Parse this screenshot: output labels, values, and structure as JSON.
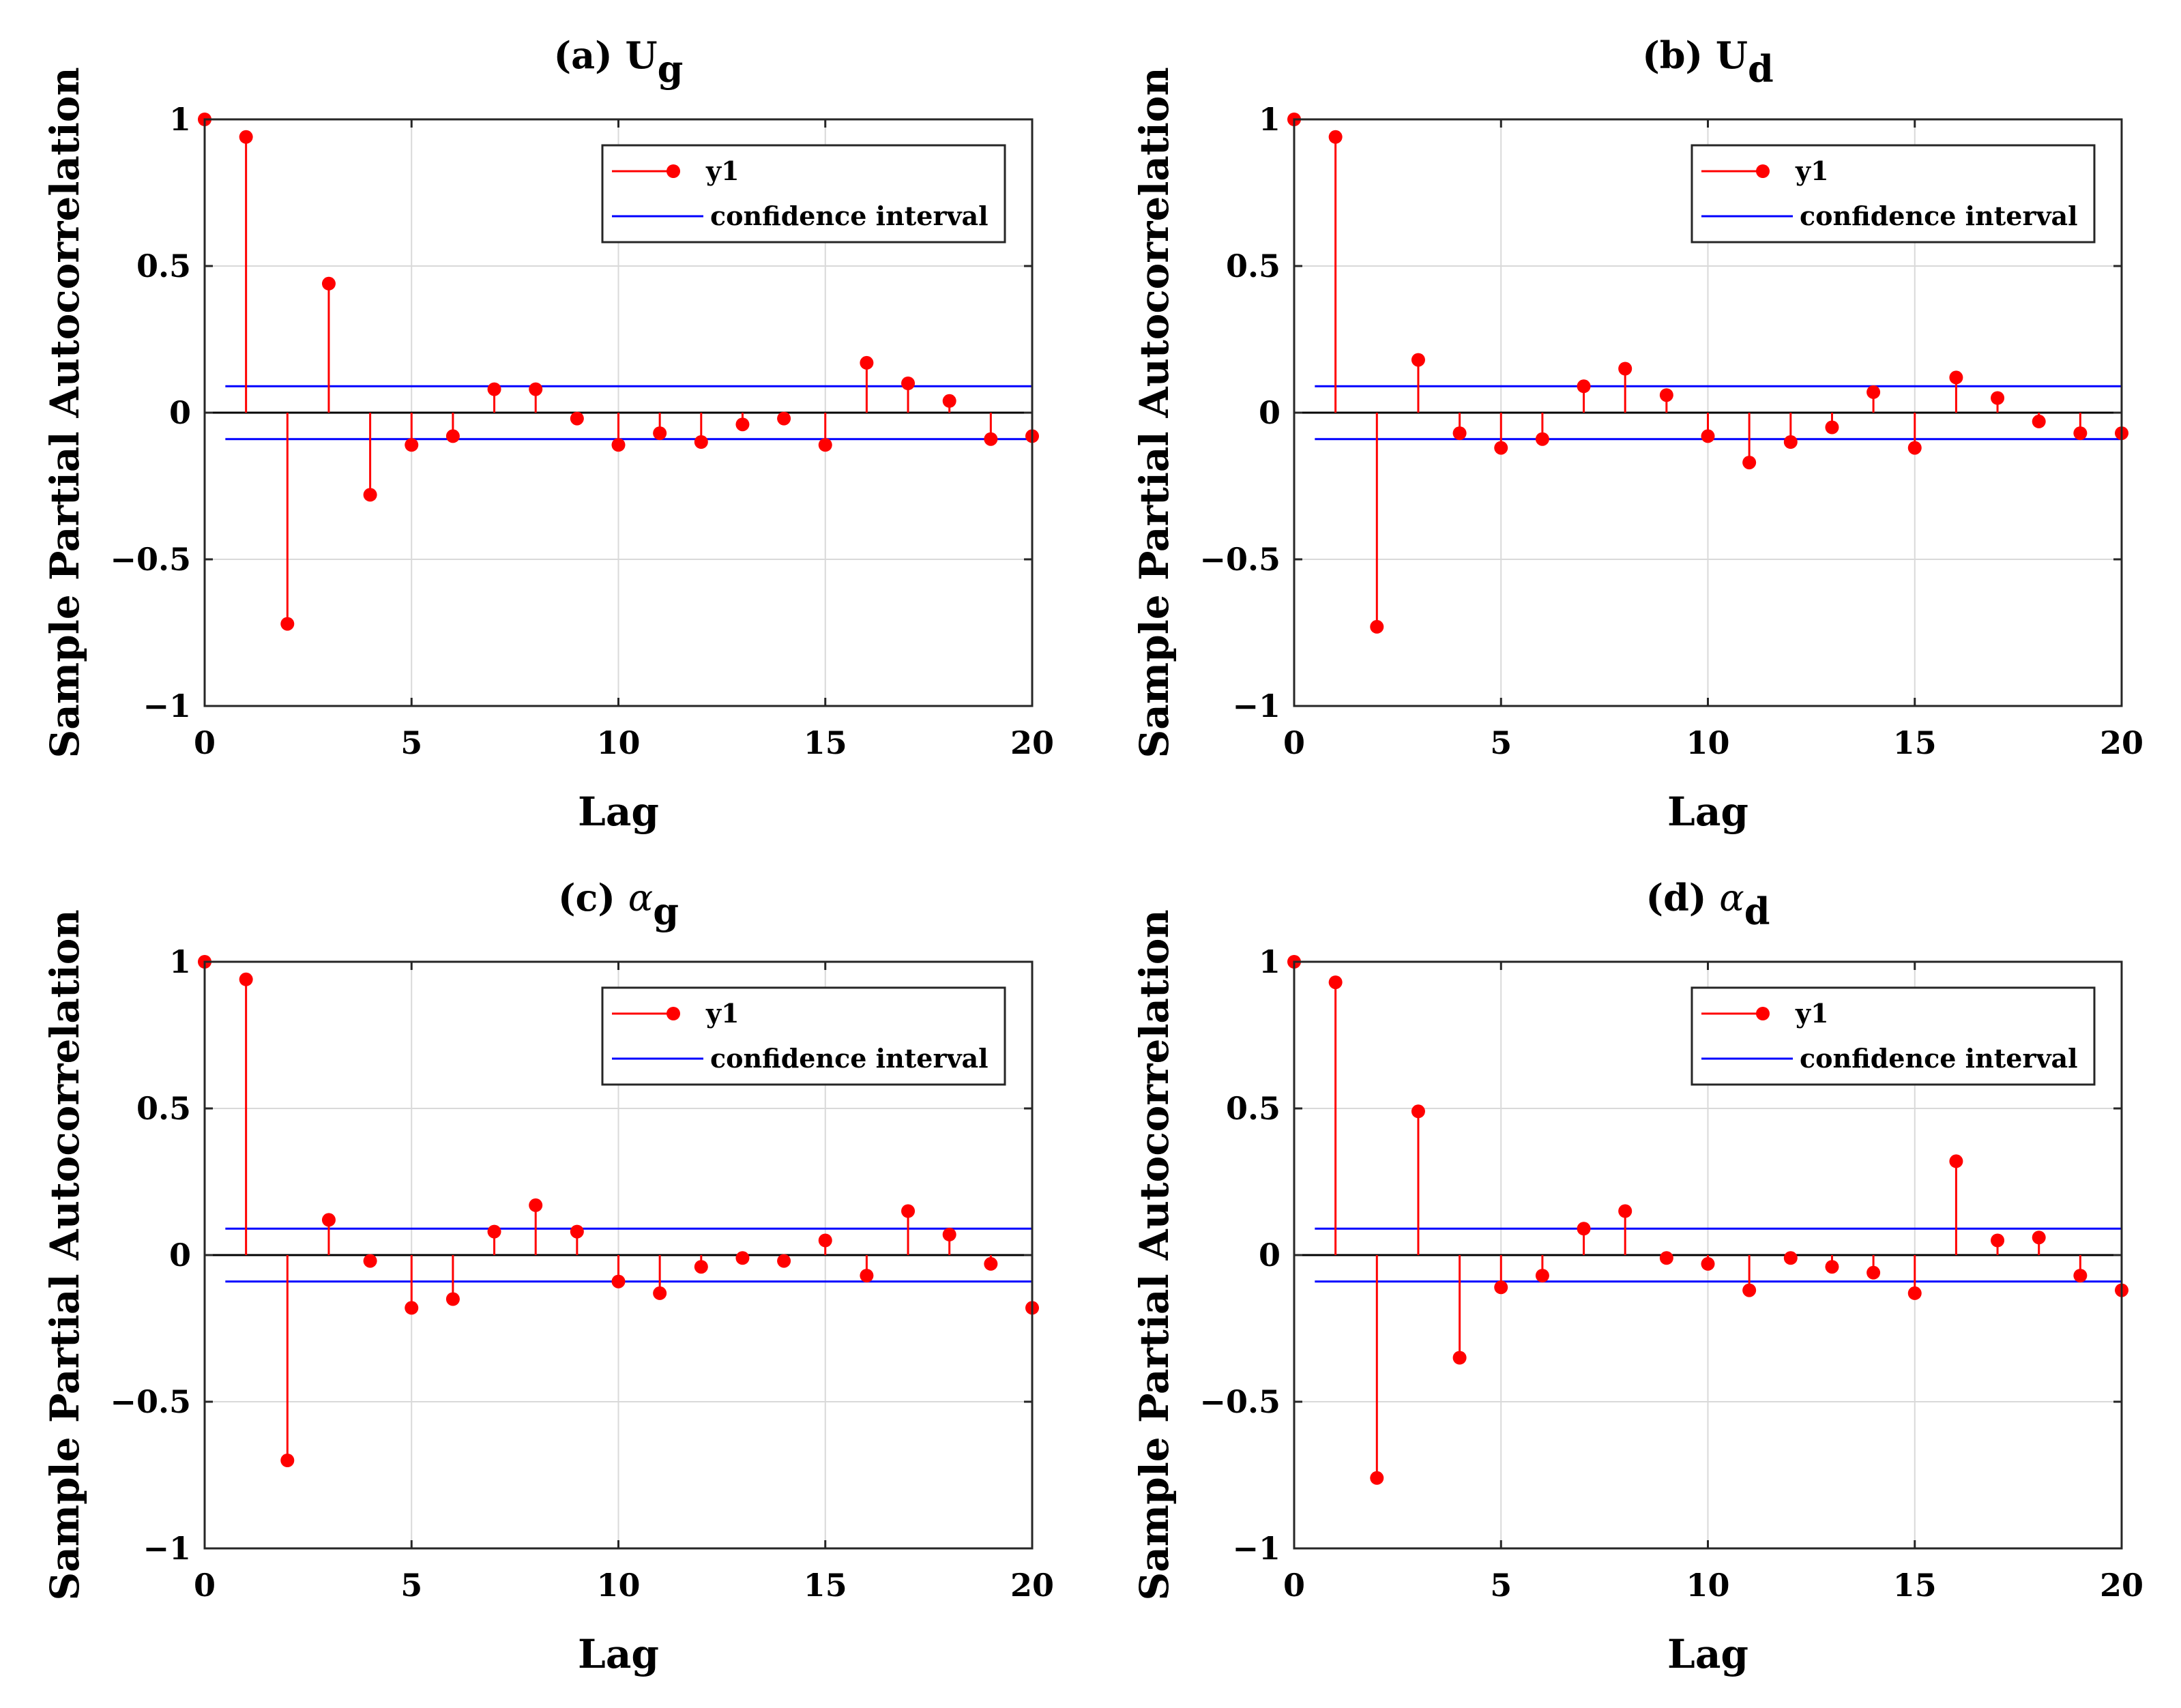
{
  "chart_data": [
    {
      "type": "stem",
      "title": {
        "prefix": "(a) ",
        "symbol": "U",
        "subscript": "g",
        "italic_symbol": false
      },
      "xlabel": "Lag",
      "ylabel": "Sample Partial Autocorrelation",
      "xlim": [
        0,
        20
      ],
      "ylim": [
        -1,
        1
      ],
      "xticks": [
        0,
        5,
        10,
        15,
        20
      ],
      "xtick_labels": [
        "0",
        "5",
        "10",
        "15",
        "20"
      ],
      "yticks": [
        1,
        0.5,
        0,
        -0.5,
        -1
      ],
      "ytick_labels": [
        "1",
        "0.5",
        "0",
        "−0.5",
        "−1"
      ],
      "grid": true,
      "legend": {
        "position": "top-right",
        "entries": [
          "y1",
          "confidence interval"
        ]
      },
      "confidence_bounds": [
        0.09,
        -0.09
      ],
      "x": [
        0,
        1,
        2,
        3,
        4,
        5,
        6,
        7,
        8,
        9,
        10,
        11,
        12,
        13,
        14,
        15,
        16,
        17,
        18,
        19,
        20
      ],
      "values": [
        1.0,
        0.94,
        -0.72,
        0.44,
        -0.28,
        -0.11,
        -0.08,
        0.08,
        0.08,
        -0.02,
        -0.11,
        -0.07,
        -0.1,
        -0.04,
        -0.02,
        -0.11,
        0.17,
        0.1,
        0.04,
        -0.09,
        -0.08
      ]
    },
    {
      "type": "stem",
      "title": {
        "prefix": "(b) ",
        "symbol": "U",
        "subscript": "d",
        "italic_symbol": false
      },
      "xlabel": "Lag",
      "ylabel": "Sample Partial Autocorrelation",
      "xlim": [
        0,
        20
      ],
      "ylim": [
        -1,
        1
      ],
      "xticks": [
        0,
        5,
        10,
        15,
        20
      ],
      "xtick_labels": [
        "0",
        "5",
        "10",
        "15",
        "20"
      ],
      "yticks": [
        1,
        0.5,
        0,
        -0.5,
        -1
      ],
      "ytick_labels": [
        "1",
        "0.5",
        "0",
        "−0.5",
        "−1"
      ],
      "grid": true,
      "legend": {
        "position": "top-right",
        "entries": [
          "y1",
          "confidence interval"
        ]
      },
      "confidence_bounds": [
        0.09,
        -0.09
      ],
      "x": [
        0,
        1,
        2,
        3,
        4,
        5,
        6,
        7,
        8,
        9,
        10,
        11,
        12,
        13,
        14,
        15,
        16,
        17,
        18,
        19,
        20
      ],
      "values": [
        1.0,
        0.94,
        -0.73,
        0.18,
        -0.07,
        -0.12,
        -0.09,
        0.09,
        0.15,
        0.06,
        -0.08,
        -0.17,
        -0.1,
        -0.05,
        0.07,
        -0.12,
        0.12,
        0.05,
        -0.03,
        -0.07,
        -0.07
      ]
    },
    {
      "type": "stem",
      "title": {
        "prefix": "(c) ",
        "symbol": "α",
        "subscript": "g",
        "italic_symbol": true
      },
      "xlabel": "Lag",
      "ylabel": "Sample Partial Autocorrelation",
      "xlim": [
        0,
        20
      ],
      "ylim": [
        -1,
        1
      ],
      "xticks": [
        0,
        5,
        10,
        15,
        20
      ],
      "xtick_labels": [
        "0",
        "5",
        "10",
        "15",
        "20"
      ],
      "yticks": [
        1,
        0.5,
        0,
        -0.5,
        -1
      ],
      "ytick_labels": [
        "1",
        "0.5",
        "0",
        "−0.5",
        "−1"
      ],
      "grid": true,
      "legend": {
        "position": "top-right",
        "entries": [
          "y1",
          "confidence interval"
        ]
      },
      "confidence_bounds": [
        0.09,
        -0.09
      ],
      "x": [
        0,
        1,
        2,
        3,
        4,
        5,
        6,
        7,
        8,
        9,
        10,
        11,
        12,
        13,
        14,
        15,
        16,
        17,
        18,
        19,
        20
      ],
      "values": [
        1.0,
        0.94,
        -0.7,
        0.12,
        -0.02,
        -0.18,
        -0.15,
        0.08,
        0.17,
        0.08,
        -0.09,
        -0.13,
        -0.04,
        -0.01,
        -0.02,
        0.05,
        -0.07,
        0.15,
        0.07,
        -0.03,
        -0.18
      ]
    },
    {
      "type": "stem",
      "title": {
        "prefix": "(d) ",
        "symbol": "α",
        "subscript": "d",
        "italic_symbol": true
      },
      "xlabel": "Lag",
      "ylabel": "Sample Partial Autocorrelation",
      "xlim": [
        0,
        20
      ],
      "ylim": [
        -1,
        1
      ],
      "xticks": [
        0,
        5,
        10,
        15,
        20
      ],
      "xtick_labels": [
        "0",
        "5",
        "10",
        "15",
        "20"
      ],
      "yticks": [
        1,
        0.5,
        0,
        -0.5,
        -1
      ],
      "ytick_labels": [
        "1",
        "0.5",
        "0",
        "−0.5",
        "−1"
      ],
      "grid": true,
      "legend": {
        "position": "top-right",
        "entries": [
          "y1",
          "confidence interval"
        ]
      },
      "confidence_bounds": [
        0.09,
        -0.09
      ],
      "x": [
        0,
        1,
        2,
        3,
        4,
        5,
        6,
        7,
        8,
        9,
        10,
        11,
        12,
        13,
        14,
        15,
        16,
        17,
        18,
        19,
        20
      ],
      "values": [
        1.0,
        0.93,
        -0.76,
        0.49,
        -0.35,
        -0.11,
        -0.07,
        0.09,
        0.15,
        -0.01,
        -0.03,
        -0.12,
        -0.01,
        -0.04,
        -0.06,
        -0.13,
        0.32,
        0.05,
        0.06,
        -0.07,
        -0.12
      ]
    }
  ],
  "colors": {
    "stem": "#ff0000",
    "confidence": "#0000ff",
    "zero_line": "#000000",
    "grid": "#d9d9d9",
    "axes": "#262626"
  }
}
